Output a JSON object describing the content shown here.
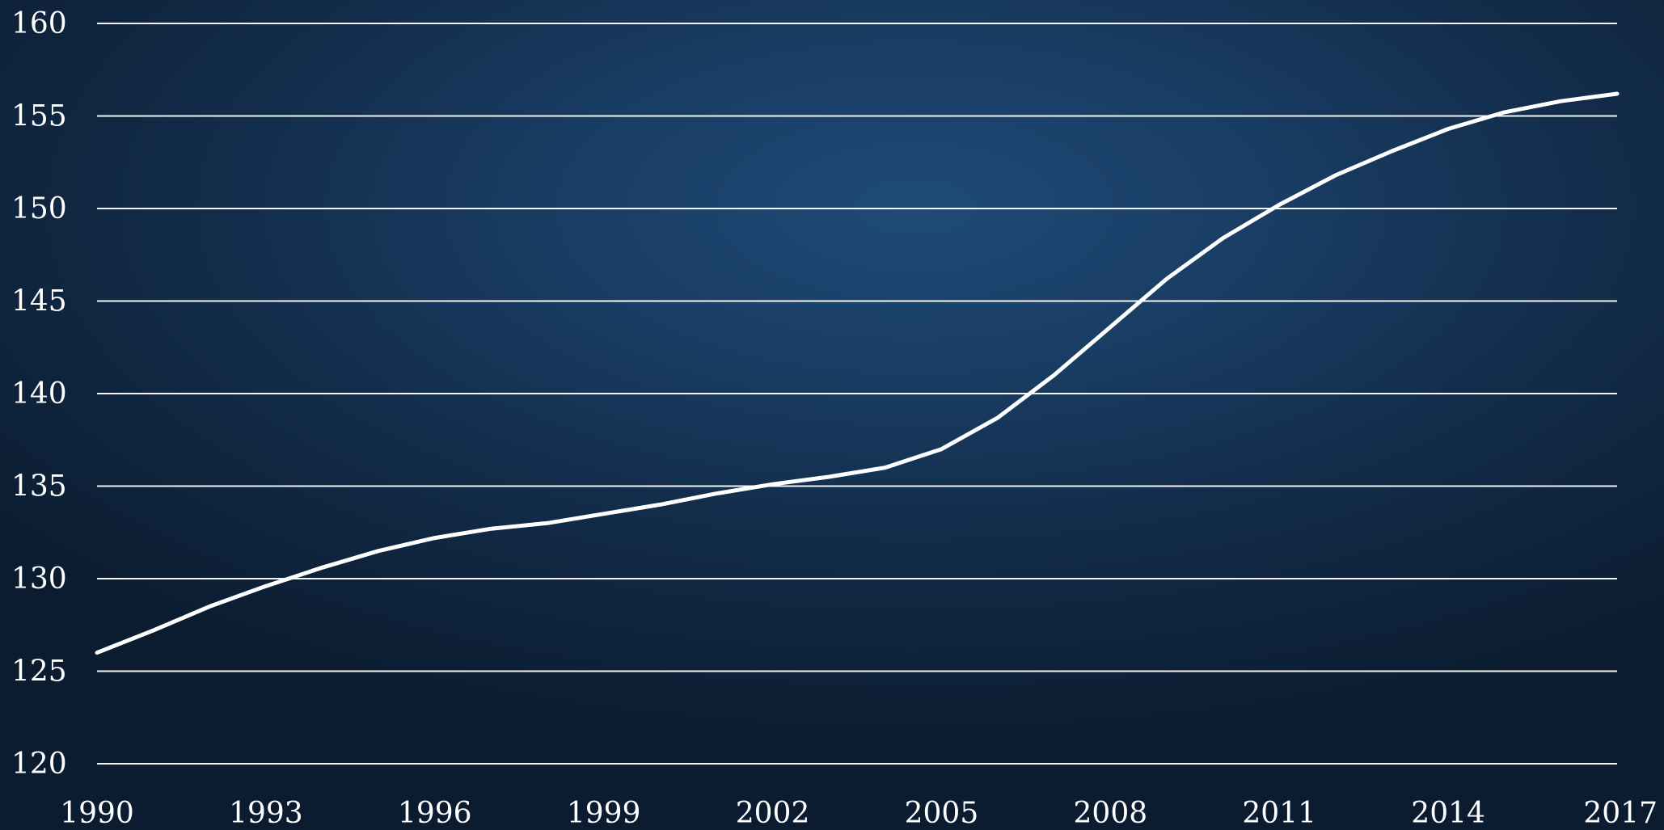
{
  "chart_data": {
    "type": "line",
    "title": "",
    "xlabel": "",
    "ylabel": "",
    "x": [
      1990,
      1991,
      1992,
      1993,
      1994,
      1995,
      1996,
      1997,
      1998,
      1999,
      2000,
      2001,
      2002,
      2003,
      2004,
      2005,
      2006,
      2007,
      2008,
      2009,
      2010,
      2011,
      2012,
      2013,
      2014,
      2015,
      2016,
      2017
    ],
    "series": [
      {
        "values": [
          126.0,
          127.2,
          128.5,
          129.6,
          130.6,
          131.5,
          132.2,
          132.7,
          133.0,
          133.5,
          134.0,
          134.6,
          135.1,
          135.5,
          136.0,
          137.0,
          138.7,
          141.0,
          143.6,
          146.2,
          148.4,
          150.2,
          151.8,
          153.1,
          154.3,
          155.2,
          155.8,
          156.2
        ],
        "color": "#ffffff"
      }
    ],
    "x_ticks": [
      "1990",
      "1993",
      "1996",
      "1999",
      "2002",
      "2005",
      "2008",
      "2011",
      "2014",
      "2017"
    ],
    "y_ticks": [
      "120",
      "125",
      "130",
      "135",
      "140",
      "145",
      "150",
      "155",
      "160"
    ],
    "xlim": [
      1990,
      2017
    ],
    "ylim": [
      120,
      160
    ],
    "grid": "horizontal",
    "legend": "none"
  }
}
